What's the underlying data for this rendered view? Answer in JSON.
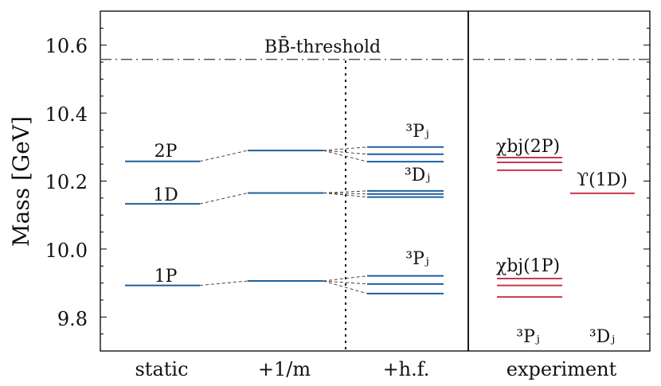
{
  "chart_data": {
    "type": "level-diagram",
    "ylabel": "Mass [GeV]",
    "ylim": [
      9.7,
      10.7
    ],
    "y_ticks": [
      9.8,
      10.0,
      10.2,
      10.4,
      10.6
    ],
    "y_tick_labels": [
      "9.8",
      "10.0",
      "10.2",
      "10.4",
      "10.6"
    ],
    "categories": [
      "static",
      "+1/m",
      "+h.f.",
      "experiment"
    ],
    "threshold": {
      "label": "BB̄-threshold",
      "value": 10.558
    },
    "colors": {
      "theory": "#1f5f9e",
      "experiment": "#c8374f",
      "axis": "#000000",
      "threshold": "#555555"
    },
    "states": [
      {
        "static": 10.258,
        "plus_1_over_m": 10.29,
        "hf": [
          10.3,
          10.279,
          10.257
        ],
        "static_label": "2P",
        "hf_label": "³Pⱼ"
      },
      {
        "static": 10.133,
        "plus_1_over_m": 10.165,
        "hf": [
          10.171,
          10.162,
          10.153
        ],
        "static_label": "1D",
        "hf_label": "³Dⱼ"
      },
      {
        "static": 9.893,
        "plus_1_over_m": 9.906,
        "hf": [
          9.921,
          9.897,
          9.869
        ],
        "static_label": "1P",
        "hf_label": "³Pⱼ"
      }
    ],
    "experiment": [
      {
        "label": "χbj(2P)",
        "values": [
          10.269,
          10.255,
          10.232
        ]
      },
      {
        "label": "χbj(1P)",
        "values": [
          9.913,
          9.893,
          9.859
        ]
      },
      {
        "label": "ϒ(1D)",
        "values": [
          10.164
        ]
      }
    ],
    "experiment_footer": {
      "left": "³Pⱼ",
      "right": "³Dⱼ"
    }
  }
}
